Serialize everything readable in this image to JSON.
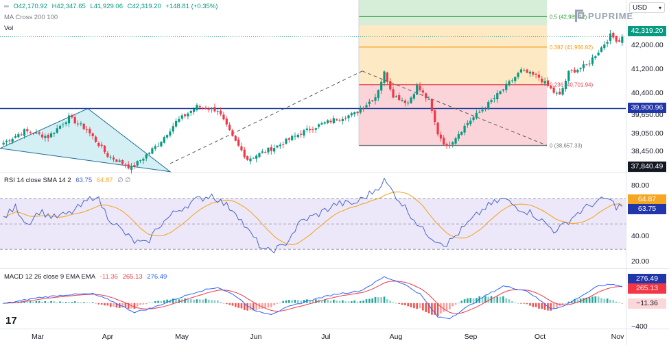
{
  "header": {
    "ohlc_open": "O42,170.92",
    "ohlc_high": "H42,347.65",
    "ohlc_low": "L41,929.06",
    "ohlc_close": "C42,319.20",
    "ohlc_change": "+148.81 (+0.35%)",
    "ma_label": "MA Cross 200 100",
    "vol_label": "Vol"
  },
  "brand": {
    "name": "PUPRIME"
  },
  "currency": {
    "label": "USD"
  },
  "rsi_header": {
    "label": "RSI 14 close SMA 14 2",
    "rsi_value": "63.75",
    "sma_value": "64.87",
    "extra": "∅ ∅"
  },
  "macd_header": {
    "label": "MACD 12 26 close 9 EMA EMA",
    "hist_value": "-11.36",
    "macd_value": "265.13",
    "signal_value": "276.49"
  },
  "badges": {
    "price_current": "42,319.20",
    "price_hline": "39,900.96",
    "price_bottom": "37,840.49",
    "rsi_sma": "64.87",
    "rsi_value": "63.75",
    "macd_signal": "276.49",
    "macd_line": "265.13",
    "macd_hist": "−11.36"
  },
  "fib_levels": [
    {
      "label": "0.5 (42,989.12)",
      "price": 42989.12,
      "color": "#2e9e3a",
      "fill": "#d6edd8"
    },
    {
      "label": "0.382 (41,966.82)",
      "price": 41966.82,
      "color": "#f59a0d",
      "fill": "#fde9c4"
    },
    {
      "label": "0.236 (40,701.94)",
      "price": 40701.94,
      "color": "#e53d4c",
      "fill": "#fad4d8"
    },
    {
      "label": "0 (38,657.33)",
      "price": 38657.33,
      "color": "#787b86",
      "fill": ""
    }
  ],
  "colors": {
    "up": "#089981",
    "down": "#f23645",
    "hline": "#1c3f9e",
    "rsi_line": "#4a64c8",
    "rsi_sma": "#f5a623",
    "rsi_band": "#ece8fa",
    "macd_line": "#2962ff",
    "macd_signal": "#f23645",
    "hist_up": "#26a69a",
    "hist_down": "#ef5350",
    "badge_green": "#089981",
    "badge_blue": "#2136a8",
    "badge_dark": "#131722",
    "badge_orange": "#f5a623",
    "badge_red": "#f23645",
    "badge_navy": "#2136a8",
    "badge_pink": "#fcd7da",
    "tri_fill": "#d4f0f4"
  },
  "chart_data": [
    {
      "type": "candlestick",
      "series_desc": "Daily price",
      "y_ticks": [
        42000,
        41200,
        40400,
        39650,
        39050,
        38450
      ],
      "y_tick_labels": [
        "42,000.00",
        "41,200.00",
        "40,400.00",
        "39,650.00",
        "39,050.00",
        "38,450.00"
      ],
      "ylim": [
        37750,
        43550
      ],
      "x_labels": [
        "Mar",
        "Apr",
        "May",
        "Jun",
        "Jul",
        "Aug",
        "Sep",
        "Oct",
        "Nov"
      ],
      "horizontal_line": 39900.96,
      "last_close": 42319.2,
      "keypoints": [
        [
          0,
          38750
        ],
        [
          7,
          39150
        ],
        [
          15,
          38950
        ],
        [
          22,
          39600
        ],
        [
          28,
          39190
        ],
        [
          35,
          38320
        ],
        [
          43,
          37900
        ],
        [
          52,
          38700
        ],
        [
          58,
          39450
        ],
        [
          65,
          39970
        ],
        [
          72,
          39850
        ],
        [
          77,
          38920
        ],
        [
          82,
          38200
        ],
        [
          92,
          38640
        ],
        [
          100,
          39080
        ],
        [
          106,
          39340
        ],
        [
          112,
          39560
        ],
        [
          118,
          39720
        ],
        [
          125,
          40300
        ],
        [
          128,
          41100
        ],
        [
          131,
          40350
        ],
        [
          136,
          40100
        ],
        [
          139,
          40650
        ],
        [
          143,
          40150
        ],
        [
          146,
          39070
        ],
        [
          149,
          38600
        ],
        [
          156,
          39420
        ],
        [
          162,
          39960
        ],
        [
          168,
          40550
        ],
        [
          174,
          41170
        ],
        [
          180,
          40950
        ],
        [
          185,
          40450
        ],
        [
          187,
          40330
        ],
        [
          190,
          41100
        ],
        [
          196,
          41350
        ],
        [
          201,
          41950
        ],
        [
          204,
          42350
        ],
        [
          207,
          42170
        ],
        [
          208,
          42319
        ]
      ]
    },
    {
      "type": "line",
      "name": "RSI",
      "ylim": [
        15,
        90
      ],
      "y_ticks": [
        80,
        60,
        40,
        20
      ],
      "y_tick_labels": [
        "80.00",
        "60.00",
        "40.00",
        "20.00"
      ],
      "band": [
        30,
        70
      ],
      "mid": 50,
      "last_rsi": 63.75,
      "last_sma": 64.87,
      "keypoints": [
        [
          0,
          55
        ],
        [
          4,
          63
        ],
        [
          8,
          50
        ],
        [
          12,
          60
        ],
        [
          17,
          55
        ],
        [
          22,
          58
        ],
        [
          26,
          64
        ],
        [
          31,
          73
        ],
        [
          35,
          56
        ],
        [
          40,
          44
        ],
        [
          44,
          36
        ],
        [
          48,
          34
        ],
        [
          52,
          48
        ],
        [
          58,
          60
        ],
        [
          64,
          68
        ],
        [
          70,
          73
        ],
        [
          74,
          66
        ],
        [
          78,
          60
        ],
        [
          82,
          45
        ],
        [
          88,
          28
        ],
        [
          94,
          32
        ],
        [
          100,
          52
        ],
        [
          106,
          58
        ],
        [
          112,
          66
        ],
        [
          118,
          66
        ],
        [
          124,
          75
        ],
        [
          128,
          84
        ],
        [
          131,
          75
        ],
        [
          136,
          60
        ],
        [
          141,
          45
        ],
        [
          145,
          38
        ],
        [
          149,
          34
        ],
        [
          156,
          50
        ],
        [
          162,
          63
        ],
        [
          168,
          70
        ],
        [
          172,
          64
        ],
        [
          178,
          58
        ],
        [
          185,
          45
        ],
        [
          188,
          48
        ],
        [
          192,
          57
        ],
        [
          198,
          66
        ],
        [
          203,
          70
        ],
        [
          206,
          64
        ],
        [
          208,
          63.75
        ]
      ]
    },
    {
      "type": "macd",
      "ylim": [
        -420,
        560
      ],
      "y_ticks": [
        -400
      ],
      "y_tick_labels": [
        "−400"
      ],
      "last_macd": 265.13,
      "last_signal": 276.49,
      "last_hist": -11.36,
      "keypoints": [
        [
          0,
          -10
        ],
        [
          12,
          90
        ],
        [
          22,
          140
        ],
        [
          30,
          150
        ],
        [
          36,
          40
        ],
        [
          44,
          -150
        ],
        [
          50,
          -80
        ],
        [
          58,
          70
        ],
        [
          66,
          200
        ],
        [
          72,
          260
        ],
        [
          78,
          120
        ],
        [
          84,
          -120
        ],
        [
          90,
          -180
        ],
        [
          96,
          -60
        ],
        [
          104,
          60
        ],
        [
          112,
          150
        ],
        [
          120,
          200
        ],
        [
          128,
          430
        ],
        [
          134,
          330
        ],
        [
          140,
          150
        ],
        [
          146,
          -230
        ],
        [
          150,
          -250
        ],
        [
          156,
          -60
        ],
        [
          162,
          120
        ],
        [
          168,
          280
        ],
        [
          176,
          200
        ],
        [
          184,
          -90
        ],
        [
          188,
          -60
        ],
        [
          194,
          110
        ],
        [
          200,
          280
        ],
        [
          205,
          310
        ],
        [
          208,
          265
        ]
      ]
    }
  ]
}
